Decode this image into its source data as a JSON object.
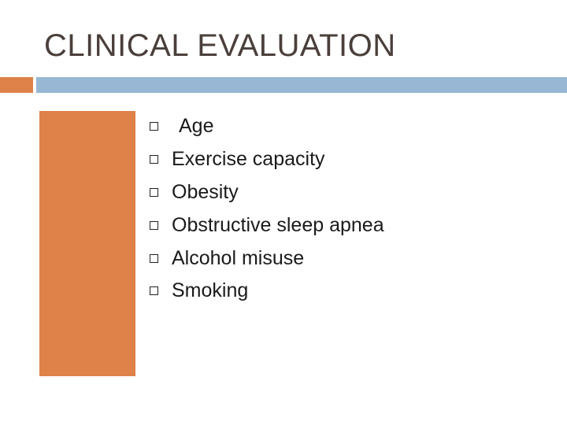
{
  "slide": {
    "title": "CLINICAL EVALUATION",
    "accent_colors": {
      "orange": "#de8249",
      "blue": "#97b7d4"
    },
    "bullet_icon": "hollow-square-icon",
    "bullets": [
      {
        "text": "Age"
      },
      {
        "text": "Exercise capacity"
      },
      {
        "text": "Obesity"
      },
      {
        "text": "Obstructive sleep apnea"
      },
      {
        "text": "Alcohol misuse"
      },
      {
        "text": "Smoking"
      }
    ]
  }
}
